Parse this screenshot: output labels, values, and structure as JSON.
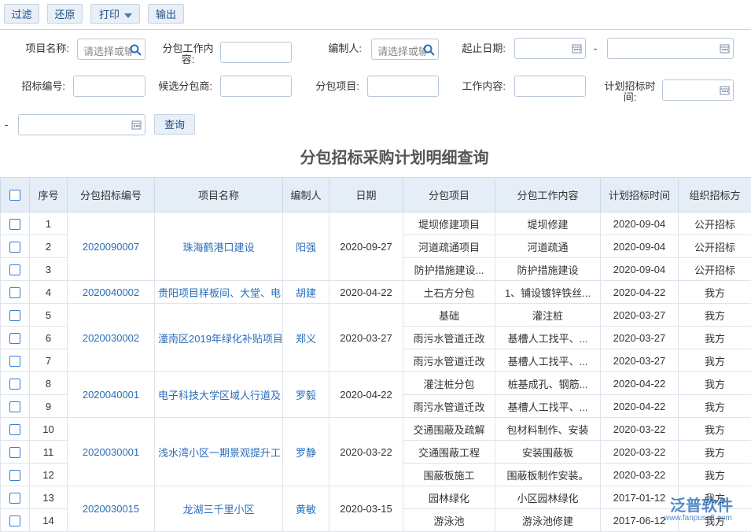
{
  "toolbar": {
    "buttons": [
      "过滤",
      "还原",
      "打印",
      "输出"
    ]
  },
  "form": {
    "fields": [
      {
        "label": "项目名称:",
        "placeholder": "请选择或输"
      },
      {
        "label": "分包工作内容:"
      },
      {
        "label": "编制人:",
        "placeholder": "请选择或输"
      },
      {
        "label": "起止日期:"
      },
      {
        "label": "招标编号:"
      },
      {
        "label": "候选分包商:"
      },
      {
        "label": "分包项目:"
      },
      {
        "label": "工作内容:"
      },
      {
        "label": "计划招标时间:"
      }
    ],
    "range_separator": "-",
    "search_button": "查询"
  },
  "title": "分包招标采购计划明细查询",
  "table": {
    "columns": [
      "序号",
      "分包招标编号",
      "项目名称",
      "编制人",
      "日期",
      "分包项目",
      "分包工作内容",
      "计划招标时间",
      "组织招标方"
    ],
    "groups": [
      {
        "code": "2020090007",
        "project": "珠海鹤港口建设",
        "author": "阳强",
        "date": "2020-09-27",
        "items": [
          {
            "seq": "1",
            "sub_project": "堤坝修建项目",
            "work": "堤坝修建",
            "plan_date": "2020-09-04",
            "org": "公开招标"
          },
          {
            "seq": "2",
            "sub_project": "河道疏通项目",
            "work": "河道疏通",
            "plan_date": "2020-09-04",
            "org": "公开招标"
          },
          {
            "seq": "3",
            "sub_project": "防护措施建设...",
            "work": "防护措施建设",
            "plan_date": "2020-09-04",
            "org": "公开招标"
          }
        ]
      },
      {
        "code": "2020040002",
        "project": "贵阳项目样板间、大堂、电",
        "author": "胡建",
        "date": "2020-04-22",
        "items": [
          {
            "seq": "4",
            "sub_project": "土石方分包",
            "work": "1、铺设镀锌铁丝...",
            "plan_date": "2020-04-22",
            "org": "我方"
          }
        ]
      },
      {
        "code": "2020030002",
        "project": "潼南区2019年绿化补贴项目",
        "author": "郑义",
        "date": "2020-03-27",
        "items": [
          {
            "seq": "5",
            "sub_project": "基础",
            "work": "灌注桩",
            "plan_date": "2020-03-27",
            "org": "我方"
          },
          {
            "seq": "6",
            "sub_project": "雨污水管道迁改",
            "work": "基槽人工找平、...",
            "plan_date": "2020-03-27",
            "org": "我方"
          },
          {
            "seq": "7",
            "sub_project": "雨污水管道迁改",
            "work": "基槽人工找平、...",
            "plan_date": "2020-03-27",
            "org": "我方"
          }
        ]
      },
      {
        "code": "2020040001",
        "project": "电子科技大学区域人行道及",
        "author": "罗毅",
        "date": "2020-04-22",
        "items": [
          {
            "seq": "8",
            "sub_project": "灌注桩分包",
            "work": "桩基成孔、钢筋...",
            "plan_date": "2020-04-22",
            "org": "我方"
          },
          {
            "seq": "9",
            "sub_project": "雨污水管道迁改",
            "work": "基槽人工找平、...",
            "plan_date": "2020-04-22",
            "org": "我方"
          }
        ]
      },
      {
        "code": "2020030001",
        "project": "浅水湾小区一期景观提升工",
        "author": "罗静",
        "date": "2020-03-22",
        "items": [
          {
            "seq": "10",
            "sub_project": "交通围蔽及疏解",
            "work": "包材料制作、安装",
            "plan_date": "2020-03-22",
            "org": "我方"
          },
          {
            "seq": "11",
            "sub_project": "交通围蔽工程",
            "work": "安装围蔽板",
            "plan_date": "2020-03-22",
            "org": "我方"
          },
          {
            "seq": "12",
            "sub_project": "围蔽板施工",
            "work": "围蔽板制作安装。",
            "plan_date": "2020-03-22",
            "org": "我方"
          }
        ]
      },
      {
        "code": "2020030015",
        "project": "龙湖三千里小区",
        "author": "黄敏",
        "date": "2020-03-15",
        "items": [
          {
            "seq": "13",
            "sub_project": "园林绿化",
            "work": "小区园林绿化",
            "plan_date": "2017-01-12",
            "org": "我方"
          },
          {
            "seq": "14",
            "sub_project": "游泳池",
            "work": "游泳池修建",
            "plan_date": "2017-06-12",
            "org": "我方"
          }
        ]
      }
    ]
  },
  "watermark": {
    "brand": "泛普软件",
    "url": "www.fanpusoft.com"
  }
}
